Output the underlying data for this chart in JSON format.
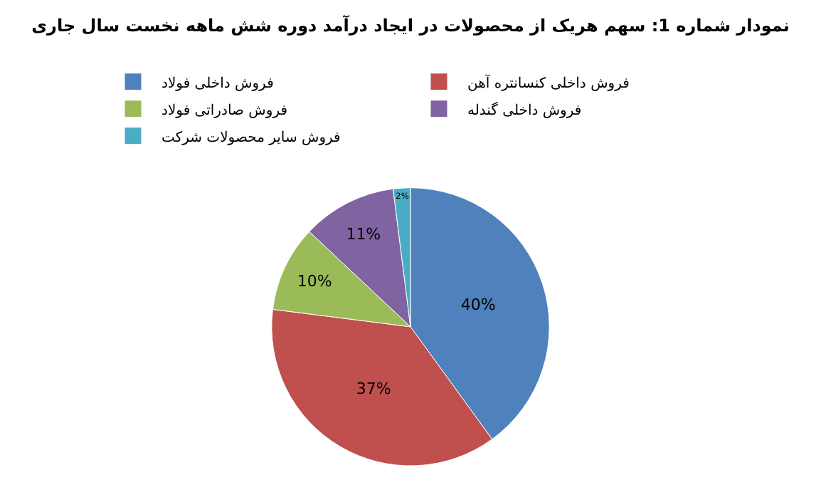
{
  "chart_data": {
    "type": "pie",
    "title": "نمودار شماره 1: سهم هریک از محصولات در ایجاد درآمد دوره شش ماهه نخست سال جاری",
    "categories": [
      "فروش داخلی فولاد",
      "فروش داخلی کنسانتره آهن",
      "فروش صادراتی فولاد",
      "فروش داخلی گندله",
      "فروش سایر محصولات شرکت"
    ],
    "values": [
      40,
      37,
      10,
      11,
      2
    ],
    "colors": [
      "#4f81bd",
      "#c0504d",
      "#9bbb59",
      "#8064a2",
      "#4bacc6"
    ],
    "value_labels": [
      "40%",
      "37%",
      "10%",
      "11%",
      "2%"
    ],
    "legend": "top"
  }
}
